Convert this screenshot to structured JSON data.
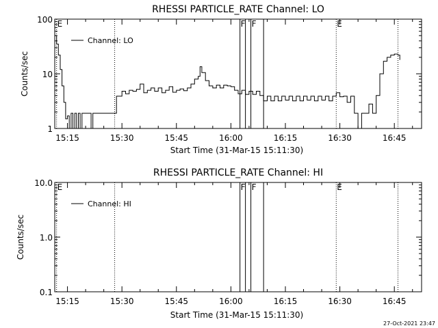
{
  "footer_timestamp": "27-Oct-2021 23:47",
  "chart_data": [
    {
      "type": "line",
      "title": "RHESSI PARTICLE_RATE Channel: LO",
      "xlabel": "Start Time (31-Mar-15 15:11:30)",
      "ylabel": "Counts/sec",
      "xscale": "time",
      "x_range": [
        "15:11:30",
        "16:52:30"
      ],
      "yscale": "log",
      "ylim": [
        1,
        100
      ],
      "x_tick_labels": [
        "15:15",
        "15:30",
        "15:45",
        "16:00",
        "16:15",
        "16:30",
        "16:45"
      ],
      "y_tick_labels": [
        "1",
        "10",
        "100"
      ],
      "legend": {
        "position": "top-left",
        "entries": [
          "Channel: LO"
        ]
      },
      "grid": false,
      "markers": [
        {
          "time": "15:12:00",
          "label": "E",
          "style": "dotted"
        },
        {
          "time": "15:28:00",
          "label": "",
          "style": "dotted"
        },
        {
          "time": "16:02:30",
          "label": "F",
          "style": "solid"
        },
        {
          "time": "16:04:00",
          "label": "",
          "style": "solid"
        },
        {
          "time": "16:05:30",
          "label": "F",
          "style": "solid"
        },
        {
          "time": "16:09:00",
          "label": "",
          "style": "solid"
        },
        {
          "time": "16:29:00",
          "label": "E",
          "style": "dotted"
        },
        {
          "time": "16:46:00",
          "label": "",
          "style": "dotted"
        }
      ],
      "series": [
        {
          "name": "Channel: LO",
          "points": [
            [
              "15:11:30",
              50
            ],
            [
              "15:12:00",
              35
            ],
            [
              "15:12:30",
              22
            ],
            [
              "15:13:00",
              12
            ],
            [
              "15:13:30",
              6
            ],
            [
              "15:14:00",
              3
            ],
            [
              "15:14:30",
              1.5
            ],
            [
              "15:15:00",
              1.7
            ],
            [
              "15:15:30",
              1.0
            ],
            [
              "15:16:00",
              1.9
            ],
            [
              "15:16:30",
              1.0
            ],
            [
              "15:17:00",
              1.9
            ],
            [
              "15:17:30",
              1.0
            ],
            [
              "15:18:00",
              1.9
            ],
            [
              "15:18:30",
              1.0
            ],
            [
              "15:19:00",
              1.9
            ],
            [
              "15:20:00",
              1.9
            ],
            [
              "15:21:00",
              1.9
            ],
            [
              "15:21:30",
              1.0
            ],
            [
              "15:22:00",
              1.9
            ],
            [
              "15:23:00",
              1.9
            ],
            [
              "15:25:00",
              1.9
            ],
            [
              "15:28:00",
              1.9
            ],
            [
              "15:28:30",
              3.9
            ],
            [
              "15:30:00",
              4.8
            ],
            [
              "15:31:00",
              4.3
            ],
            [
              "15:32:00",
              5.0
            ],
            [
              "15:33:00",
              4.8
            ],
            [
              "15:34:00",
              5.2
            ],
            [
              "15:35:00",
              6.5
            ],
            [
              "15:36:00",
              4.5
            ],
            [
              "15:37:00",
              5.0
            ],
            [
              "15:38:00",
              5.5
            ],
            [
              "15:39:00",
              4.8
            ],
            [
              "15:40:00",
              5.5
            ],
            [
              "15:41:00",
              4.5
            ],
            [
              "15:42:00",
              5.0
            ],
            [
              "15:43:00",
              5.8
            ],
            [
              "15:44:00",
              4.6
            ],
            [
              "15:45:00",
              5.0
            ],
            [
              "15:46:00",
              5.3
            ],
            [
              "15:47:00",
              4.9
            ],
            [
              "15:48:00",
              5.5
            ],
            [
              "15:49:00",
              6.5
            ],
            [
              "15:50:00",
              8.0
            ],
            [
              "15:51:00",
              9.0
            ],
            [
              "15:51:30",
              13.5
            ],
            [
              "15:52:00",
              10.5
            ],
            [
              "15:53:00",
              7.5
            ],
            [
              "15:54:00",
              6.0
            ],
            [
              "15:55:00",
              5.5
            ],
            [
              "15:56:00",
              6.2
            ],
            [
              "15:57:00",
              5.5
            ],
            [
              "15:58:00",
              6.2
            ],
            [
              "15:59:00",
              6.0
            ],
            [
              "16:00:00",
              5.8
            ],
            [
              "16:01:00",
              5.0
            ],
            [
              "16:02:00",
              4.3
            ],
            [
              "16:03:00",
              5.0
            ],
            [
              "16:04:00",
              4.2
            ],
            [
              "16:05:00",
              4.8
            ],
            [
              "16:06:00",
              4.2
            ],
            [
              "16:07:00",
              4.8
            ],
            [
              "16:08:00",
              4.0
            ],
            [
              "16:09:00",
              3.2
            ],
            [
              "16:10:00",
              3.9
            ],
            [
              "16:11:00",
              3.2
            ],
            [
              "16:12:00",
              3.9
            ],
            [
              "16:13:00",
              3.2
            ],
            [
              "16:14:00",
              3.9
            ],
            [
              "16:15:00",
              3.3
            ],
            [
              "16:16:00",
              3.9
            ],
            [
              "16:17:00",
              3.2
            ],
            [
              "16:18:00",
              3.9
            ],
            [
              "16:19:00",
              3.2
            ],
            [
              "16:20:00",
              3.9
            ],
            [
              "16:21:00",
              3.3
            ],
            [
              "16:22:00",
              3.9
            ],
            [
              "16:23:00",
              3.2
            ],
            [
              "16:24:00",
              3.9
            ],
            [
              "16:25:00",
              3.3
            ],
            [
              "16:26:00",
              3.9
            ],
            [
              "16:27:00",
              3.2
            ],
            [
              "16:28:00",
              3.9
            ],
            [
              "16:29:00",
              4.5
            ],
            [
              "16:30:00",
              3.8
            ],
            [
              "16:31:00",
              3.9
            ],
            [
              "16:32:00",
              3.0
            ],
            [
              "16:33:00",
              3.9
            ],
            [
              "16:34:00",
              1.9
            ],
            [
              "16:35:00",
              1.0
            ],
            [
              "16:36:00",
              1.9
            ],
            [
              "16:37:00",
              1.9
            ],
            [
              "16:38:00",
              2.8
            ],
            [
              "16:39:00",
              1.9
            ],
            [
              "16:40:00",
              4.0
            ],
            [
              "16:41:00",
              10.0
            ],
            [
              "16:42:00",
              17.0
            ],
            [
              "16:43:00",
              20.0
            ],
            [
              "16:44:00",
              22.0
            ],
            [
              "16:45:00",
              23.0
            ],
            [
              "16:46:00",
              22.0
            ],
            [
              "16:46:30",
              18.0
            ]
          ]
        }
      ]
    },
    {
      "type": "line",
      "title": "RHESSI PARTICLE_RATE Channel: HI",
      "xlabel": "Start Time (31-Mar-15 15:11:30)",
      "ylabel": "Counts/sec",
      "xscale": "time",
      "x_range": [
        "15:11:30",
        "16:52:30"
      ],
      "yscale": "log",
      "ylim": [
        0.1,
        10
      ],
      "x_tick_labels": [
        "15:15",
        "15:30",
        "15:45",
        "16:00",
        "16:15",
        "16:30",
        "16:45"
      ],
      "y_tick_labels": [
        "0.1",
        "1.0",
        "10.0"
      ],
      "legend": {
        "position": "top-left",
        "entries": [
          "Channel: HI"
        ]
      },
      "grid": false,
      "markers": [
        {
          "time": "15:12:00",
          "label": "E",
          "style": "dotted"
        },
        {
          "time": "15:28:00",
          "label": "",
          "style": "dotted"
        },
        {
          "time": "16:02:30",
          "label": "F",
          "style": "solid"
        },
        {
          "time": "16:04:00",
          "label": "",
          "style": "solid"
        },
        {
          "time": "16:05:30",
          "label": "F",
          "style": "solid"
        },
        {
          "time": "16:09:00",
          "label": "",
          "style": "solid"
        },
        {
          "time": "16:29:00",
          "label": "E",
          "style": "dotted"
        },
        {
          "time": "16:46:00",
          "label": "",
          "style": "dotted"
        }
      ],
      "series": [
        {
          "name": "Channel: HI",
          "points": []
        }
      ]
    }
  ]
}
